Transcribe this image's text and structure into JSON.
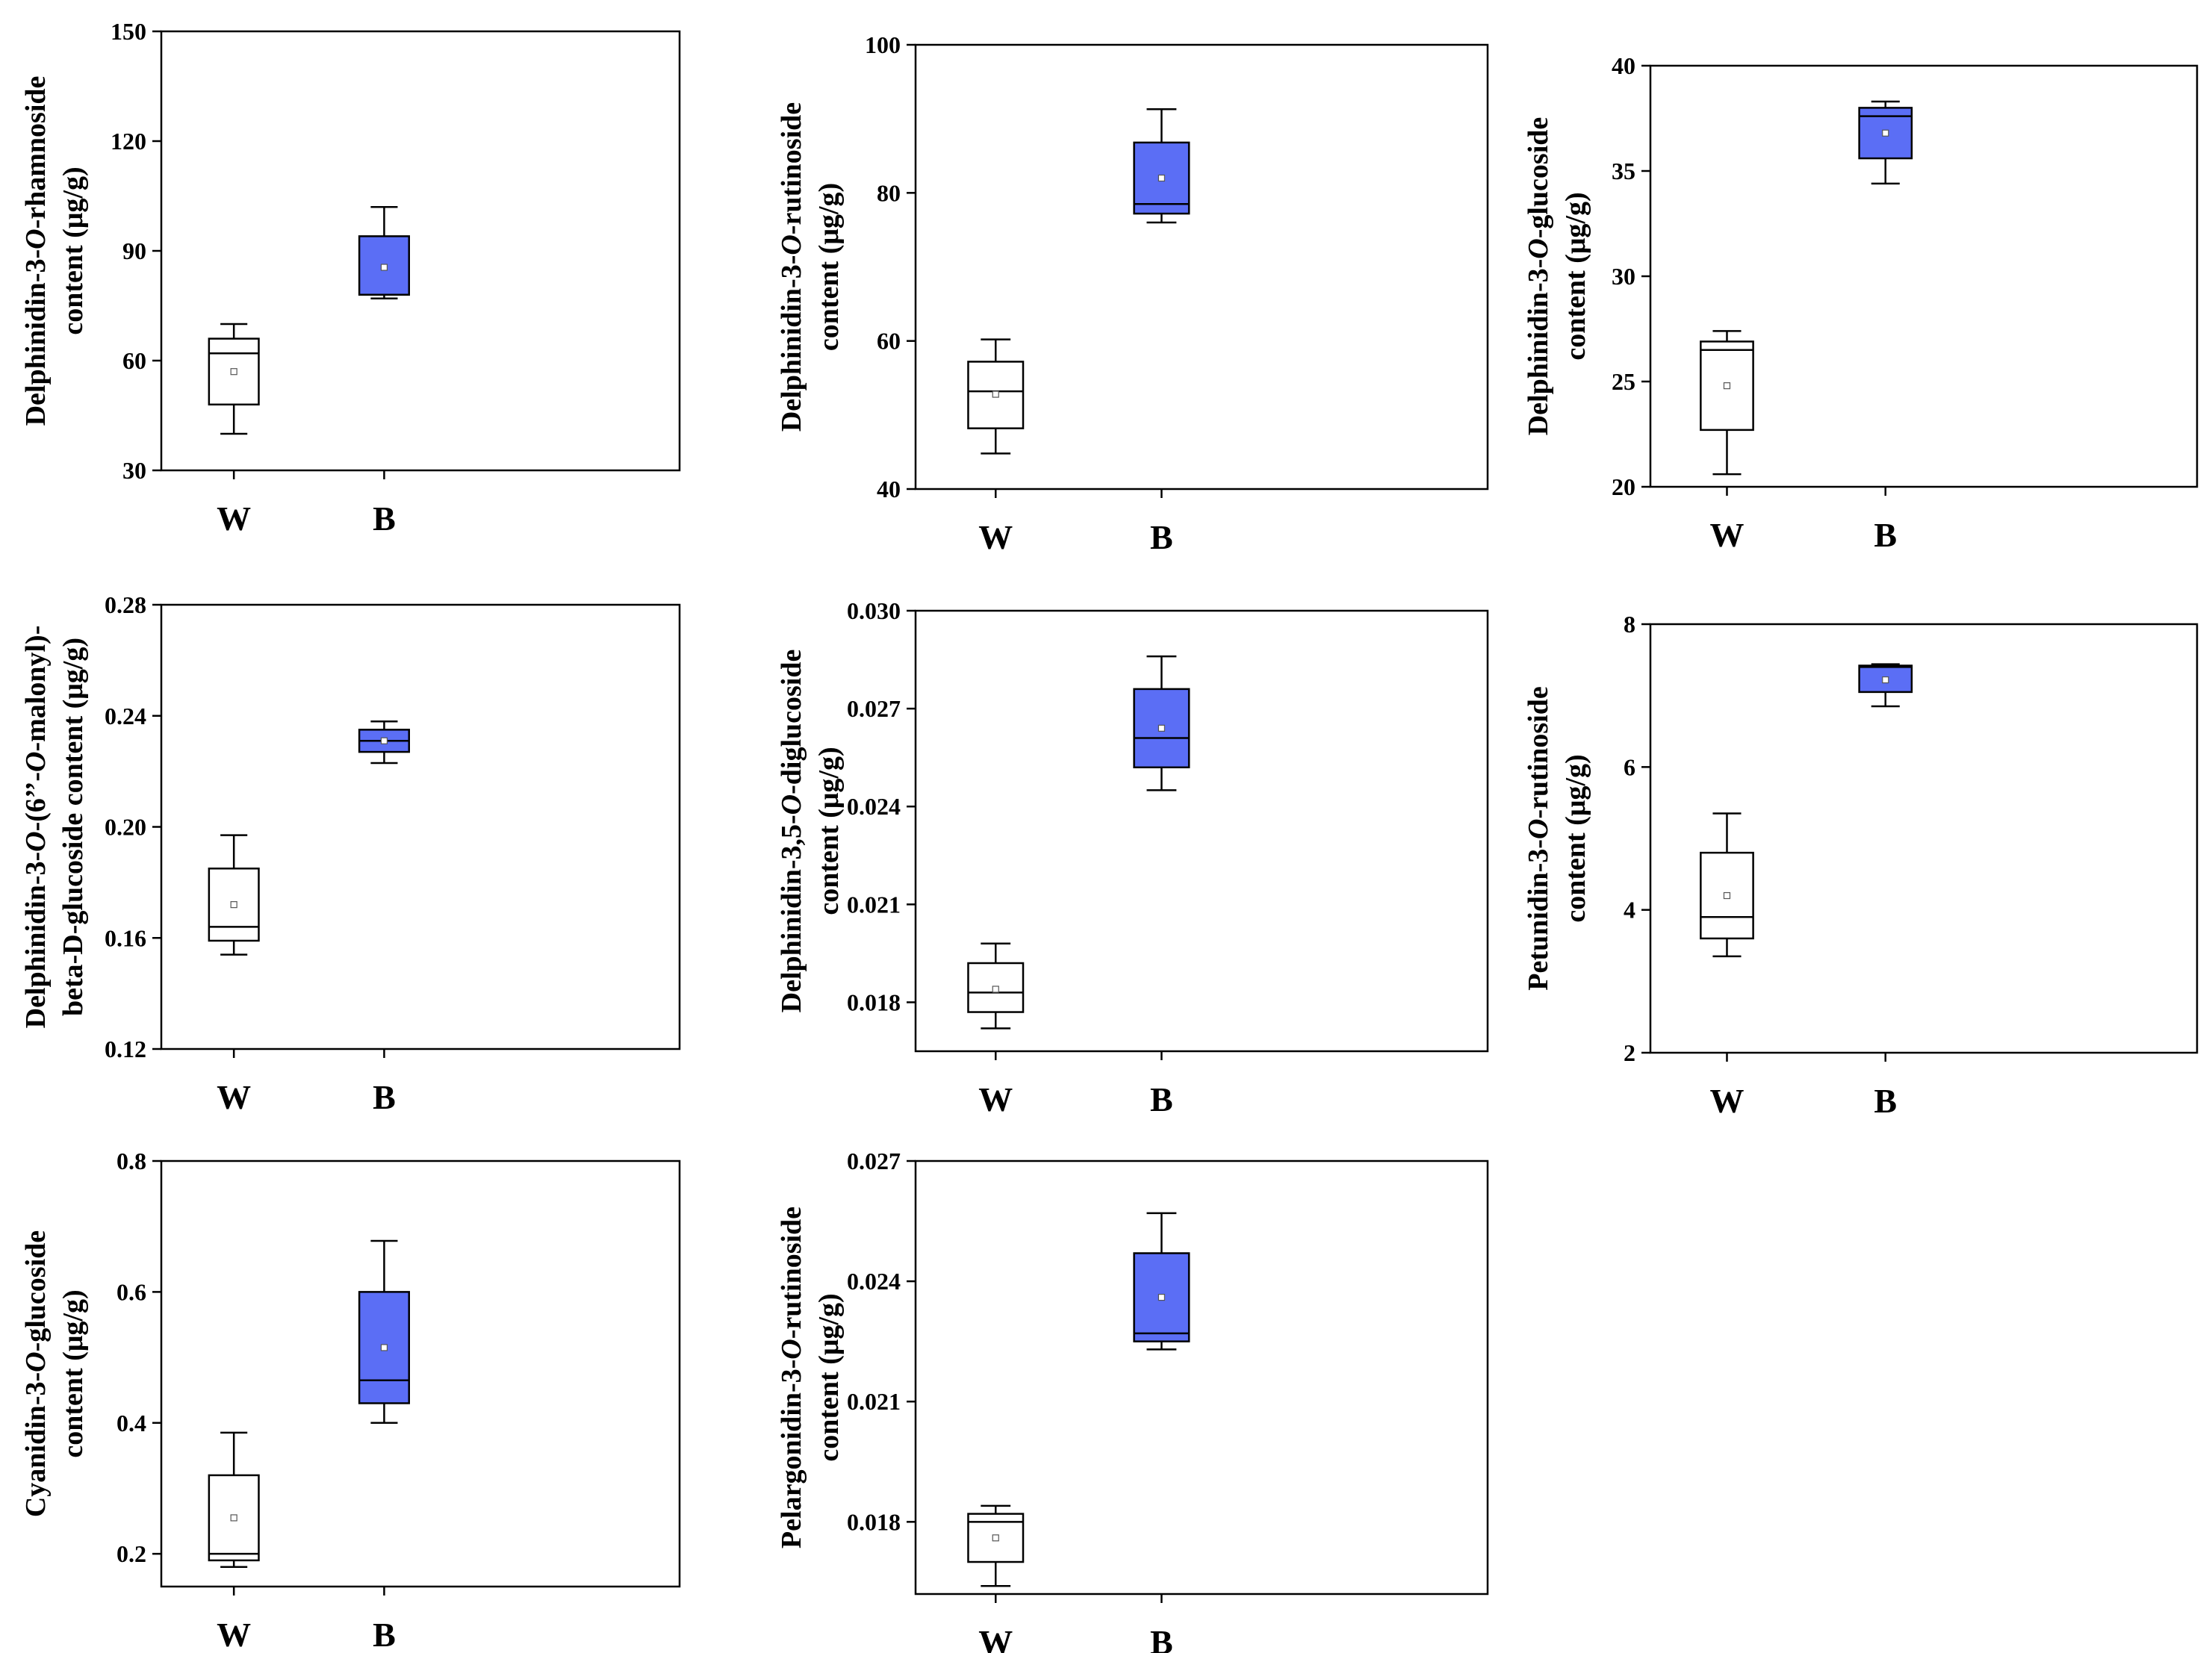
{
  "colors": {
    "W_fill": "#ffffff",
    "B_fill": "#5b6ef5",
    "stroke": "#000000"
  },
  "chart_data": [
    {
      "type": "box",
      "ylabel_lines": [
        [
          {
            "t": "Delphinidin-3-"
          },
          {
            "t": "O",
            "i": true
          },
          {
            "t": "-rhamnoside"
          }
        ],
        [
          {
            "t": "content (μg/g)"
          }
        ]
      ],
      "categories": [
        "W",
        "B"
      ],
      "ylim": [
        30,
        150
      ],
      "yticks": [
        "30",
        "60",
        "90",
        "120",
        "150"
      ],
      "boxes": [
        {
          "name": "W",
          "min": 40,
          "q1": 48,
          "median": 62,
          "q3": 66,
          "max": 70,
          "mean": 57
        },
        {
          "name": "B",
          "min": 77,
          "q1": 78,
          "median": 78,
          "q3": 94,
          "max": 102,
          "mean": 85.5
        }
      ]
    },
    {
      "type": "box",
      "ylabel_lines": [
        [
          {
            "t": "Delphinidin-3-"
          },
          {
            "t": "O",
            "i": true
          },
          {
            "t": "-rutinoside"
          }
        ],
        [
          {
            "t": "content (μg/g)"
          }
        ]
      ],
      "categories": [
        "W",
        "B"
      ],
      "ylim": [
        40,
        100
      ],
      "yticks": [
        "40",
        "60",
        "80",
        "100"
      ],
      "boxes": [
        {
          "name": "W",
          "min": 44.8,
          "q1": 48.2,
          "median": 53.2,
          "q3": 57.2,
          "max": 60.2,
          "mean": 52.8
        },
        {
          "name": "B",
          "min": 76,
          "q1": 77.2,
          "median": 78.5,
          "q3": 86.8,
          "max": 91.3,
          "mean": 82
        }
      ]
    },
    {
      "type": "box",
      "ylabel_lines": [
        [
          {
            "t": "Delphinidin-3-"
          },
          {
            "t": "O",
            "i": true
          },
          {
            "t": "-glucoside"
          }
        ],
        [
          {
            "t": "content (μg/g)"
          }
        ]
      ],
      "categories": [
        "W",
        "B"
      ],
      "ylim": [
        20,
        40
      ],
      "yticks": [
        "20",
        "25",
        "30",
        "35",
        "40"
      ],
      "boxes": [
        {
          "name": "W",
          "min": 20.6,
          "q1": 22.7,
          "median": 26.5,
          "q3": 26.9,
          "max": 27.4,
          "mean": 24.8
        },
        {
          "name": "B",
          "min": 34.4,
          "q1": 35.6,
          "median": 37.6,
          "q3": 38,
          "max": 38.3,
          "mean": 36.8
        }
      ]
    },
    {
      "type": "box",
      "ylabel_lines": [
        [
          {
            "t": "Delphinidin-3-"
          },
          {
            "t": "O",
            "i": true
          },
          {
            "t": "-(6’’-"
          },
          {
            "t": "O",
            "i": true
          },
          {
            "t": "-malonyl)-"
          }
        ],
        [
          {
            "t": "beta-D-glucoside content (μg/g)"
          }
        ]
      ],
      "categories": [
        "W",
        "B"
      ],
      "ylim": [
        0.12,
        0.28
      ],
      "yticks": [
        "0.12",
        "0.16",
        "0.20",
        "0.24",
        "0.28"
      ],
      "boxes": [
        {
          "name": "W",
          "min": 0.154,
          "q1": 0.159,
          "median": 0.164,
          "q3": 0.185,
          "max": 0.197,
          "mean": 0.172
        },
        {
          "name": "B",
          "min": 0.223,
          "q1": 0.227,
          "median": 0.231,
          "q3": 0.235,
          "max": 0.238,
          "mean": 0.231
        }
      ]
    },
    {
      "type": "box",
      "ylabel_lines": [
        [
          {
            "t": "Delphinidin-3,5-"
          },
          {
            "t": "O",
            "i": true
          },
          {
            "t": "-diglucoside"
          }
        ],
        [
          {
            "t": "content (μg/g)"
          }
        ]
      ],
      "categories": [
        "W",
        "B"
      ],
      "ylim": [
        0.0165,
        0.03
      ],
      "yticks": [
        "0.018",
        "0.021",
        "0.024",
        "0.027",
        "0.030"
      ],
      "boxes": [
        {
          "name": "W",
          "min": 0.0172,
          "q1": 0.0177,
          "median": 0.0183,
          "q3": 0.0192,
          "max": 0.0198,
          "mean": 0.0184
        },
        {
          "name": "B",
          "min": 0.0245,
          "q1": 0.0252,
          "median": 0.0261,
          "q3": 0.0276,
          "max": 0.0286,
          "mean": 0.0264
        }
      ]
    },
    {
      "type": "box",
      "ylabel_lines": [
        [
          {
            "t": "Petunidin-3-"
          },
          {
            "t": "O",
            "i": true
          },
          {
            "t": "-rutinoside"
          }
        ],
        [
          {
            "t": "content (μg/g)"
          }
        ]
      ],
      "categories": [
        "W",
        "B"
      ],
      "ylim": [
        2,
        8
      ],
      "yticks": [
        "2",
        "4",
        "6",
        "8"
      ],
      "boxes": [
        {
          "name": "W",
          "min": 3.35,
          "q1": 3.6,
          "median": 3.9,
          "q3": 4.8,
          "max": 5.35,
          "mean": 4.2
        },
        {
          "name": "B",
          "min": 6.85,
          "q1": 7.05,
          "median": 7.4,
          "q3": 7.42,
          "max": 7.44,
          "mean": 7.22
        }
      ]
    },
    {
      "type": "box",
      "ylabel_lines": [
        [
          {
            "t": "Cyanidin-3-"
          },
          {
            "t": "O",
            "i": true
          },
          {
            "t": "-glucoside"
          }
        ],
        [
          {
            "t": "content  (μg/g)"
          }
        ]
      ],
      "categories": [
        "W",
        "B"
      ],
      "ylim": [
        0.15,
        0.8
      ],
      "yticks": [
        "0.2",
        "0.4",
        "0.6",
        "0.8"
      ],
      "boxes": [
        {
          "name": "W",
          "min": 0.18,
          "q1": 0.19,
          "median": 0.2,
          "q3": 0.32,
          "max": 0.385,
          "mean": 0.255
        },
        {
          "name": "B",
          "min": 0.4,
          "q1": 0.43,
          "median": 0.465,
          "q3": 0.6,
          "max": 0.678,
          "mean": 0.515
        }
      ]
    },
    {
      "type": "box",
      "ylabel_lines": [
        [
          {
            "t": "Pelargonidin-3-"
          },
          {
            "t": "O",
            "i": true
          },
          {
            "t": "-rutinoside"
          }
        ],
        [
          {
            "t": "content (μg/g)"
          }
        ]
      ],
      "categories": [
        "W",
        "B"
      ],
      "ylim": [
        0.0162,
        0.027
      ],
      "yticks": [
        "0.018",
        "0.021",
        "0.024",
        "0.027"
      ],
      "boxes": [
        {
          "name": "W",
          "min": 0.0164,
          "q1": 0.017,
          "median": 0.018,
          "q3": 0.0182,
          "max": 0.0184,
          "mean": 0.0176
        },
        {
          "name": "B",
          "min": 0.0223,
          "q1": 0.0225,
          "median": 0.0227,
          "q3": 0.0247,
          "max": 0.0257,
          "mean": 0.0236
        }
      ]
    }
  ]
}
